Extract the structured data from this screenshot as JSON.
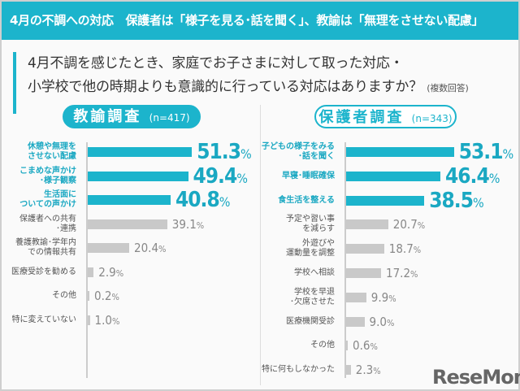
{
  "header": {
    "title": "4月の不調への対応　保護者は「様子を見る･話を聞く」、教諭は「無理をさせない配慮」"
  },
  "question": {
    "line1": "4月不調を感じたとき、家庭でお子さまに対して取った対応・",
    "line2": "小学校で他の時期よりも意識的に行っている対応はありますか？",
    "note": "(複数回答)"
  },
  "colors": {
    "accent": "#1cb4cc",
    "gray_bar": "#c9c9c9"
  },
  "logo": "ReseMom",
  "chart_data": [
    {
      "type": "bar",
      "orientation": "horizontal",
      "title": "教諭調査",
      "n": "(n=417)",
      "unit": "%",
      "xlim": [
        0,
        60
      ],
      "categories": [
        "休憩や無理を\nさせない配慮",
        "こまめな声かけ\n･様子観察",
        "生活面に\nついての声かけ",
        "保護者への共有\n･連携",
        "養護教諭･学年内\nでの情報共有",
        "医療受診を勧める",
        "その他",
        "特に変えていない"
      ],
      "values": [
        51.3,
        49.4,
        40.8,
        39.1,
        20.4,
        2.9,
        0.2,
        1.0
      ],
      "labels": [
        "51.3",
        "49.4",
        "40.8",
        "39.1",
        "20.4",
        "2.9",
        "0.2",
        "1.0"
      ],
      "highlighted": 3
    },
    {
      "type": "bar",
      "orientation": "horizontal",
      "title": "保護者調査",
      "n": "(n=343)",
      "unit": "%",
      "xlim": [
        0,
        60
      ],
      "categories": [
        "子どもの様子をみる\n･話を聞く",
        "早寝･睡眠確保",
        "食生活を整える",
        "予定や習い事\nを減らす",
        "外遊びや\n運動量を調整",
        "学校へ相談",
        "学校を早退\n･欠席させた",
        "医療機関受診",
        "その他",
        "特に何もしなかった"
      ],
      "values": [
        53.1,
        46.4,
        38.5,
        20.7,
        18.7,
        17.2,
        9.9,
        9.0,
        0.6,
        2.3
      ],
      "labels": [
        "53.1",
        "46.4",
        "38.5",
        "20.7",
        "18.7",
        "17.2",
        "9.9",
        "9.0",
        "0.6",
        "2.3"
      ],
      "highlighted": 3
    }
  ]
}
